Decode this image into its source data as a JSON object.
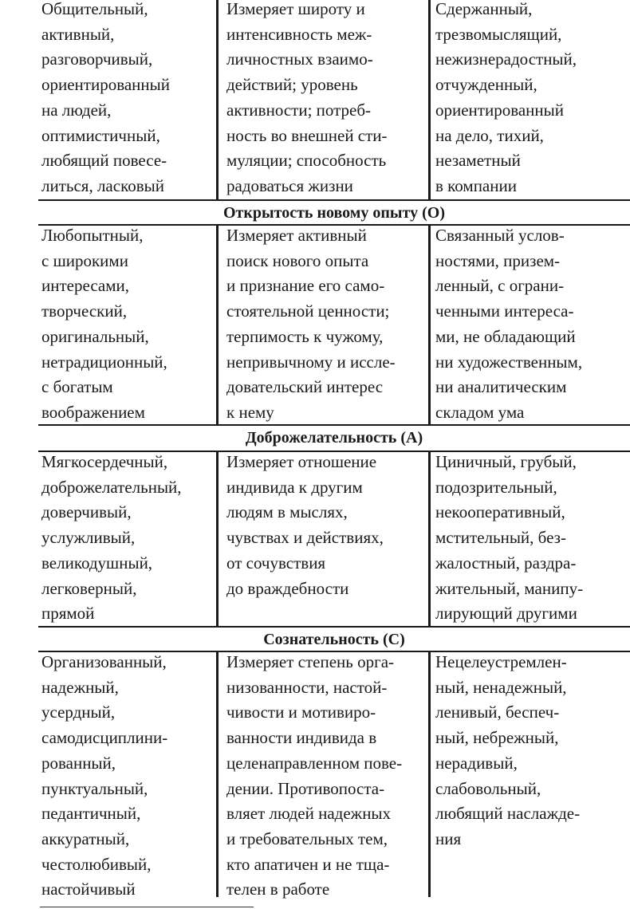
{
  "sections": [
    {
      "header": "",
      "cols": [
        [
          "Общительный,",
          "активный,",
          "разговорчивый,",
          "ориентированный",
          "на людей,",
          "оптимистичный,",
          "любящий повесе-",
          "литься, ласковый"
        ],
        [
          "Измеряет широту и",
          "интенсивность меж-",
          "личностных взаимо-",
          "действий; уровень",
          "активности; потреб-",
          "ность во внешней сти-",
          "муляции; способность",
          "радоваться жизни"
        ],
        [
          "Сдержанный,",
          "трезвомыслящий,",
          "нежизнерадостный,",
          "отчужденный,",
          "ориентированный",
          "на дело, тихий,",
          "незаметный",
          "в компании"
        ]
      ]
    },
    {
      "header": "Открытость новому опыту (О)",
      "cols": [
        [
          "Любопытный,",
          "с широкими",
          "интересами,",
          "творческий,",
          "оригинальный,",
          "нетрадиционный,",
          "с богатым",
          "воображением"
        ],
        [
          "Измеряет активный",
          "поиск нового опыта",
          "и признание его само-",
          "стоятельной ценности;",
          "терпимость к чужому,",
          "непривычному и иссле-",
          "довательский интерес",
          "к нему"
        ],
        [
          "Связанный услов-",
          "ностями, призем-",
          "ленный, с ограни-",
          "ченными интереса-",
          "ми, не обладающий",
          "ни художественным,",
          "ни аналитическим",
          "складом ума"
        ]
      ]
    },
    {
      "header": "Доброжелательность (А)",
      "cols": [
        [
          "Мягкосердечный,",
          "доброжелательный,",
          "доверчивый,",
          "услужливый,",
          "великодушный,",
          "легковерный,",
          "прямой"
        ],
        [
          "Измеряет отношение",
          "индивида к другим",
          "людям в мыслях,",
          "чувствах и действиях,",
          "от сочувствия",
          "до враждебности"
        ],
        [
          "Циничный, грубый,",
          "подозрительный,",
          "некооперативный,",
          "мстительный, без-",
          "жалостный, раздра-",
          "жительный, манипу-",
          "лирующий другими"
        ]
      ]
    },
    {
      "header": "Сознательность (С)",
      "cols": [
        [
          "Организованный,",
          "надежный,",
          "усердный,",
          "самодисциплини-",
          "рованный,",
          "пунктуальный,",
          "педантичный,",
          "аккуратный,",
          "честолюбивый,",
          "настойчивый"
        ],
        [
          "Измеряет степень орга-",
          "низованности, настой-",
          "чивости и мотивиро-",
          "ванности индивида в",
          "целенаправленном пове-",
          "дении. Противопоста-",
          "вляет людей надежных",
          "и требовательных тем,",
          "кто апатичен и не тща-",
          "телен в работе"
        ],
        [
          "Нецелеустремлен-",
          "ный, ненадежный,",
          "ленивый, беспеч-",
          "ный, небрежный,",
          "нерадивый,",
          "слабовольный,",
          "любящий наслажде-",
          "ния"
        ]
      ]
    }
  ]
}
